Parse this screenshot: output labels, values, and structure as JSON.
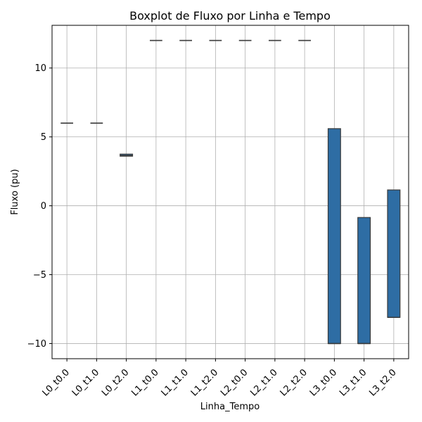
{
  "chart_data": {
    "type": "box",
    "title": "Boxplot de Fluxo por Linha e Tempo",
    "xlabel": "Linha_Tempo",
    "ylabel": "Fluxo (pu)",
    "categories": [
      "L0_t0.0",
      "L0_t1.0",
      "L0_t2.0",
      "L1_t0.0",
      "L1_t1.0",
      "L1_t2.0",
      "L2_t0.0",
      "L2_t1.0",
      "L2_t2.0",
      "L3_t0.0",
      "L3_t1.0",
      "L3_t2.0"
    ],
    "boxes": [
      {
        "q1": 6.0,
        "median": 6.0,
        "q3": 6.0
      },
      {
        "q1": 6.0,
        "median": 6.0,
        "q3": 6.0
      },
      {
        "q1": 3.6,
        "median": 3.65,
        "q3": 3.75
      },
      {
        "q1": 12.0,
        "median": 12.0,
        "q3": 12.0
      },
      {
        "q1": 12.0,
        "median": 12.0,
        "q3": 12.0
      },
      {
        "q1": 12.0,
        "median": 12.0,
        "q3": 12.0
      },
      {
        "q1": 12.0,
        "median": 12.0,
        "q3": 12.0
      },
      {
        "q1": 12.0,
        "median": 12.0,
        "q3": 12.0
      },
      {
        "q1": 12.0,
        "median": 12.0,
        "q3": 12.0
      },
      {
        "q1": -10.0,
        "median": -10.0,
        "q3": 5.6
      },
      {
        "q1": -10.0,
        "median": -10.0,
        "q3": -0.85
      },
      {
        "q1": -8.1,
        "median": -8.1,
        "q3": 1.15
      }
    ],
    "yticks": [
      -10,
      -5,
      0,
      5,
      10
    ],
    "ytick_labels": [
      "−10",
      "−5",
      "0",
      "5",
      "10"
    ],
    "ylim": [
      -11.1,
      13.1
    ],
    "grid": true,
    "box_color": "#2e6da4",
    "edge_color": "#3a3a3a",
    "grid_color": "#b0b0b0"
  }
}
